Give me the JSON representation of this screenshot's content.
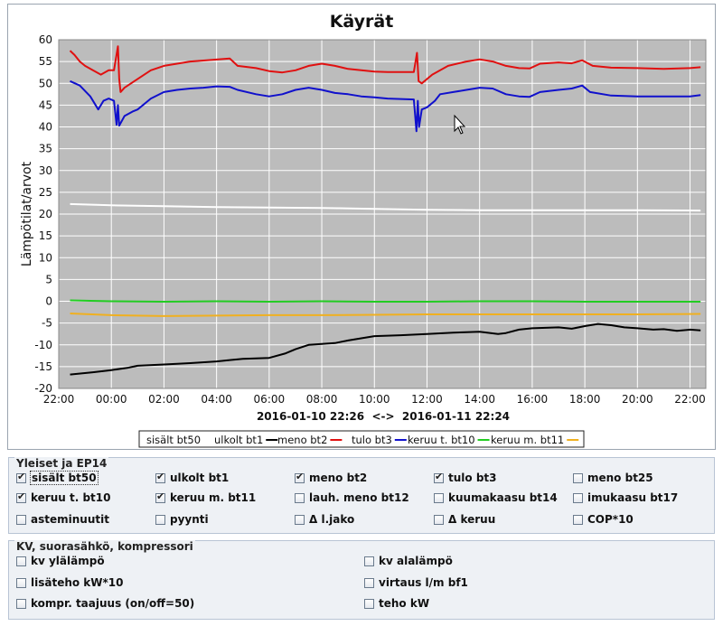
{
  "chart_data": {
    "type": "line",
    "title": "Käyrät",
    "ylabel": "Lämpötilat/arvot",
    "ylim": [
      -20,
      60
    ],
    "yticks": [
      -20,
      -15,
      -10,
      -5,
      0,
      5,
      10,
      15,
      20,
      25,
      30,
      35,
      40,
      45,
      50,
      55,
      60
    ],
    "xlim": [
      22.0,
      46.6
    ],
    "xticks": [
      {
        "t": 22,
        "label": "22:00"
      },
      {
        "t": 24,
        "label": "00:00"
      },
      {
        "t": 26,
        "label": "02:00"
      },
      {
        "t": 28,
        "label": "04:00"
      },
      {
        "t": 30,
        "label": "06:00"
      },
      {
        "t": 32,
        "label": "08:00"
      },
      {
        "t": 34,
        "label": "10:00"
      },
      {
        "t": 36,
        "label": "12:00"
      },
      {
        "t": 38,
        "label": "14:00"
      },
      {
        "t": 40,
        "label": "16:00"
      },
      {
        "t": 42,
        "label": "18:00"
      },
      {
        "t": 44,
        "label": "20:00"
      },
      {
        "t": 46,
        "label": "22:00"
      }
    ],
    "range_label": "2016-01-10 22:26  <->  2016-01-11 22:24",
    "grid": true,
    "legend_position": "bottom",
    "series": [
      {
        "name": "sisält bt50",
        "color": "#ffffff",
        "x": [
          22.43,
          24,
          26,
          28,
          30,
          32,
          34,
          36,
          38,
          40,
          42,
          44,
          46.4
        ],
        "y": [
          22.3,
          22.0,
          21.8,
          21.6,
          21.5,
          21.4,
          21.2,
          21.0,
          20.9,
          20.9,
          20.9,
          20.9,
          20.8
        ]
      },
      {
        "name": "ulkolt bt1",
        "color": "#000000",
        "x": [
          22.43,
          23.3,
          24,
          24.6,
          25,
          26,
          27,
          28,
          28.5,
          29,
          30,
          30.6,
          31,
          31.5,
          32,
          32.5,
          33,
          33.5,
          34,
          35,
          36,
          37,
          38,
          38.7,
          39,
          39.5,
          40,
          41,
          41.5,
          42,
          42.5,
          43,
          43.5,
          44,
          44.6,
          45,
          45.5,
          46,
          46.4
        ],
        "y": [
          -16.8,
          -16.3,
          -15.8,
          -15.3,
          -14.8,
          -14.5,
          -14.2,
          -13.8,
          -13.5,
          -13.2,
          -13.0,
          -12.0,
          -11.0,
          -10.0,
          -9.8,
          -9.6,
          -9.0,
          -8.5,
          -8.0,
          -7.8,
          -7.5,
          -7.2,
          -7.0,
          -7.5,
          -7.3,
          -6.5,
          -6.2,
          -6.0,
          -6.3,
          -5.7,
          -5.2,
          -5.5,
          -6.0,
          -6.2,
          -6.5,
          -6.4,
          -6.8,
          -6.5,
          -6.7
        ]
      },
      {
        "name": "meno bt2",
        "color": "#e01010",
        "x": [
          22.43,
          22.6,
          22.8,
          23.0,
          23.3,
          23.6,
          23.9,
          24.1,
          24.25,
          24.3,
          24.35,
          24.5,
          25,
          25.5,
          26,
          27,
          28.5,
          28.8,
          29.5,
          30,
          30.5,
          31,
          31.5,
          32,
          32.5,
          33,
          33.5,
          34,
          34.5,
          35,
          35.5,
          35.62,
          35.68,
          35.8,
          36.2,
          36.8,
          37.5,
          38,
          38.5,
          39,
          39.5,
          39.9,
          40.3,
          41,
          41.5,
          41.9,
          42.3,
          43,
          44,
          45,
          46,
          46.4
        ],
        "y": [
          57.5,
          56.5,
          55.0,
          54.0,
          53.0,
          52.0,
          53.0,
          53.0,
          58.5,
          51.0,
          48.0,
          49.0,
          51.0,
          53.0,
          54.0,
          55.0,
          55.7,
          54.0,
          53.5,
          52.8,
          52.5,
          53.0,
          54.0,
          54.5,
          54.0,
          53.3,
          53.0,
          52.7,
          52.6,
          52.6,
          52.6,
          57.0,
          50.5,
          50.0,
          52.0,
          54.0,
          55.0,
          55.5,
          55.0,
          54.0,
          53.5,
          53.4,
          54.5,
          54.8,
          54.6,
          55.3,
          54.0,
          53.6,
          53.5,
          53.3,
          53.5,
          53.7
        ]
      },
      {
        "name": "tulo bt3",
        "color": "#1010cc",
        "x": [
          22.43,
          22.8,
          23.2,
          23.5,
          23.7,
          23.9,
          24.1,
          24.2,
          24.25,
          24.3,
          24.5,
          24.8,
          25,
          25.5,
          26,
          26.5,
          27,
          27.5,
          28,
          28.5,
          28.8,
          29.5,
          30,
          30.5,
          31,
          31.5,
          32,
          32.5,
          33,
          33.5,
          34,
          34.5,
          35,
          35.5,
          35.6,
          35.65,
          35.7,
          35.8,
          36.0,
          36.3,
          36.5,
          37,
          37.5,
          38,
          38.5,
          39,
          39.5,
          39.9,
          40.3,
          41,
          41.5,
          41.9,
          42.2,
          43,
          44,
          45,
          46,
          46.4
        ],
        "y": [
          50.5,
          49.5,
          47.0,
          44.0,
          46.0,
          46.5,
          46.0,
          40.5,
          45.0,
          40.3,
          42.5,
          43.5,
          44.0,
          46.5,
          48.0,
          48.5,
          48.8,
          49.0,
          49.3,
          49.2,
          48.5,
          47.5,
          47.0,
          47.5,
          48.5,
          49.0,
          48.5,
          47.8,
          47.5,
          47.0,
          46.8,
          46.5,
          46.4,
          46.3,
          39.0,
          46.0,
          40.0,
          44.0,
          44.5,
          46.0,
          47.5,
          48.0,
          48.5,
          49.0,
          48.8,
          47.5,
          47.0,
          46.9,
          48.0,
          48.5,
          48.8,
          49.5,
          48.0,
          47.2,
          47.0,
          47.0,
          47.0,
          47.3
        ]
      },
      {
        "name": "keruu t. bt10",
        "color": "#22cc22",
        "x": [
          22.43,
          24,
          26,
          28,
          30,
          32,
          34,
          36,
          38,
          40,
          42,
          44,
          46.4
        ],
        "y": [
          0.2,
          0.0,
          -0.1,
          0.0,
          -0.1,
          0.0,
          -0.1,
          -0.1,
          0.0,
          0.0,
          -0.1,
          -0.1,
          -0.1
        ]
      },
      {
        "name": "keruu m. bt11",
        "color": "#f0b020",
        "x": [
          22.43,
          24,
          26,
          28,
          30,
          32,
          34,
          36,
          38,
          40,
          42,
          44,
          46.4
        ],
        "y": [
          -2.8,
          -3.2,
          -3.4,
          -3.3,
          -3.2,
          -3.2,
          -3.1,
          -3.0,
          -3.0,
          -3.0,
          -3.0,
          -3.0,
          -2.9
        ]
      }
    ]
  },
  "groups": [
    {
      "title": "Yleiset ja EP14",
      "items": [
        {
          "label": "sisält bt50",
          "checked": true
        },
        {
          "label": "ulkolt bt1",
          "checked": true
        },
        {
          "label": "meno bt2",
          "checked": true
        },
        {
          "label": "tulo bt3",
          "checked": true
        },
        {
          "label": "meno bt25",
          "checked": false
        },
        {
          "label": "keruu t. bt10",
          "checked": true
        },
        {
          "label": "keruu m. bt11",
          "checked": true
        },
        {
          "label": "lauh. meno bt12",
          "checked": false
        },
        {
          "label": "kuumakaasu bt14",
          "checked": false
        },
        {
          "label": "imukaasu bt17",
          "checked": false
        },
        {
          "label": "asteminuutit",
          "checked": false
        },
        {
          "label": "pyynti",
          "checked": false
        },
        {
          "label": "Δ l.jako",
          "checked": false
        },
        {
          "label": "Δ keruu",
          "checked": false
        },
        {
          "label": "COP*10",
          "checked": false
        }
      ]
    },
    {
      "title": "KV, suorasähkö, kompressori",
      "items": [
        {
          "label": "kv ylälämpö",
          "checked": false
        },
        {
          "label": "kv alalämpö",
          "checked": false
        },
        {
          "label": "lisäteho kW*10",
          "checked": false
        },
        {
          "label": "virtaus l/m bf1",
          "checked": false
        },
        {
          "label": "kompr. taajuus (on/off=50)",
          "checked": false
        },
        {
          "label": "teho kW",
          "checked": false
        }
      ]
    }
  ]
}
